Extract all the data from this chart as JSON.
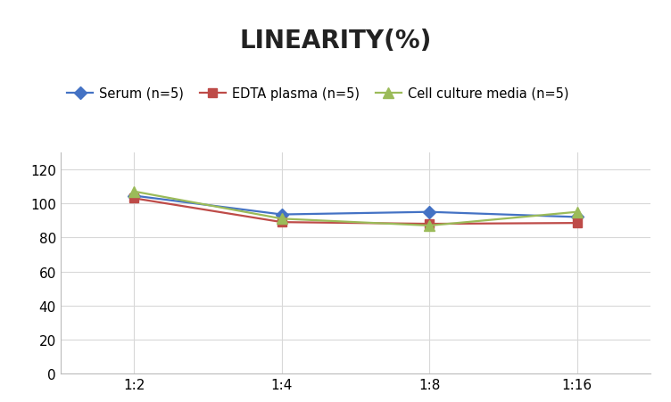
{
  "title": "LINEARITY(%)",
  "title_fontsize": 20,
  "title_fontweight": "bold",
  "x_labels": [
    "1:2",
    "1:4",
    "1:8",
    "1:16"
  ],
  "x_positions": [
    0,
    1,
    2,
    3
  ],
  "series": [
    {
      "label": "Serum (n=5)",
      "values": [
        104.5,
        93.5,
        95.0,
        92.0
      ],
      "color": "#4472C4",
      "marker": "D",
      "marker_size": 7,
      "linewidth": 1.6
    },
    {
      "label": "EDTA plasma (n=5)",
      "values": [
        103.0,
        89.0,
        88.0,
        88.5
      ],
      "color": "#BE4B48",
      "marker": "s",
      "marker_size": 7,
      "linewidth": 1.6
    },
    {
      "label": "Cell culture media (n=5)",
      "values": [
        107.0,
        91.0,
        87.0,
        95.0
      ],
      "color": "#9BBB59",
      "marker": "^",
      "marker_size": 8,
      "linewidth": 1.6
    }
  ],
  "ylim": [
    0,
    130
  ],
  "yticks": [
    0,
    20,
    40,
    60,
    80,
    100,
    120
  ],
  "background_color": "#ffffff",
  "grid_color": "#d8d8d8",
  "tick_fontsize": 11,
  "legend_fontsize": 10.5
}
